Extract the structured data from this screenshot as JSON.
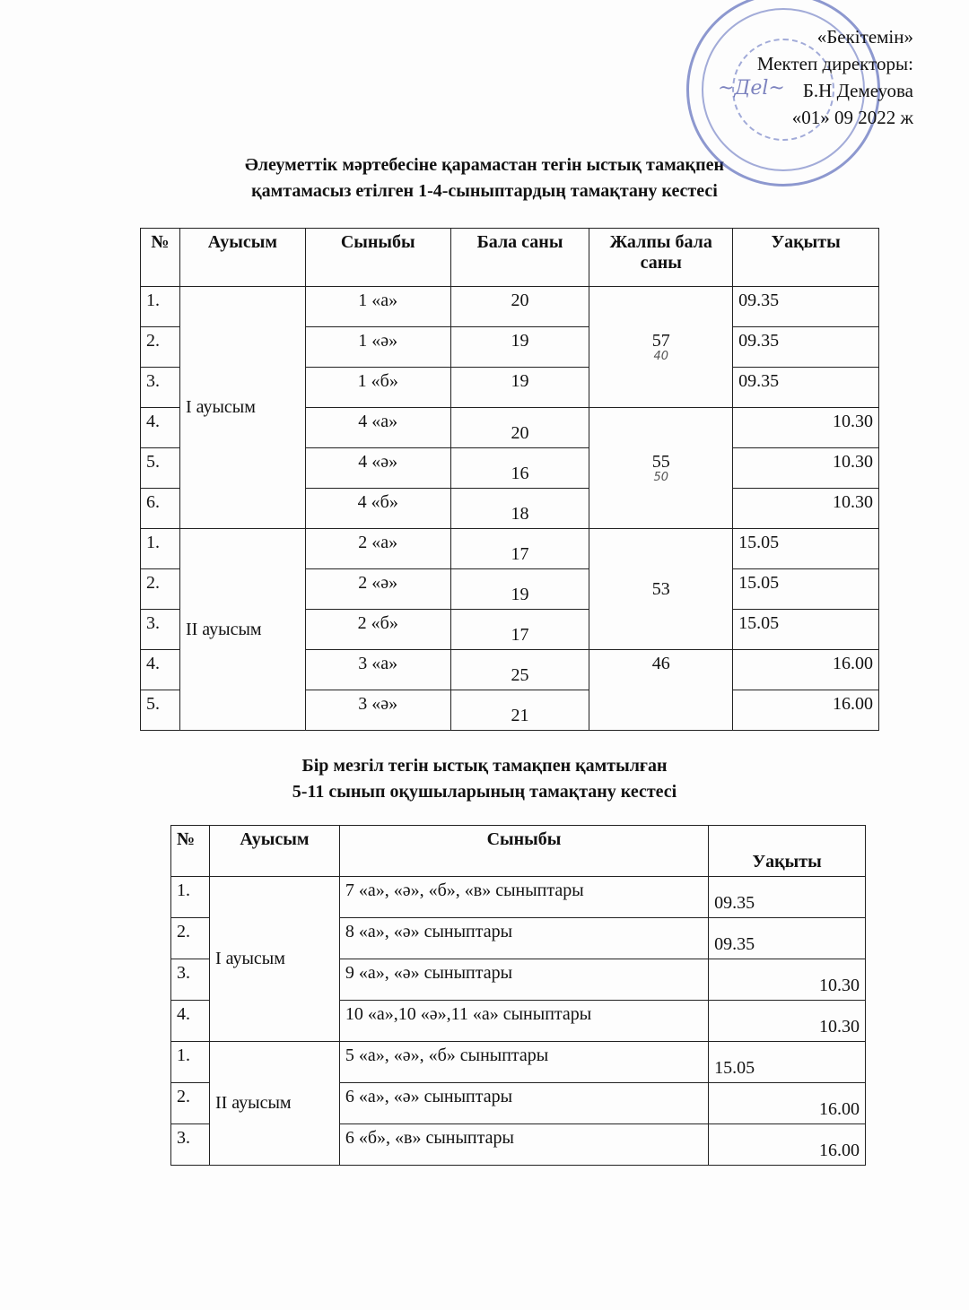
{
  "approval": {
    "line1": "«Бекітемін»",
    "line2": "Мектеп директоры:",
    "line3": "Б.Н Демеуова",
    "line4": "«01» 09 2022 ж"
  },
  "table1": {
    "title1": "Әлеуметтік мәртебесіне қарамастан тегін ыстық тамақпен",
    "title2": "қамтамасыз етілген 1-4-сыныптардың тамақтану кестесі",
    "headers": [
      "№",
      "Ауысым",
      "Сыныбы",
      "Бала саны",
      "Жалпы бала саны",
      "Уақыты"
    ],
    "shifts": [
      "І ауысым",
      "ІІ ауысым"
    ],
    "totals": [
      "57",
      "55",
      "53",
      "46"
    ],
    "handwritten": [
      "40",
      "50"
    ],
    "rows": [
      {
        "n": "1.",
        "cls": "1 «а»",
        "count": "20",
        "time": "09.35"
      },
      {
        "n": "2.",
        "cls": "1 «ә»",
        "count": "19",
        "time": "09.35"
      },
      {
        "n": "3.",
        "cls": "1 «б»",
        "count": "19",
        "time": "09.35"
      },
      {
        "n": "4.",
        "cls": "4 «а»",
        "count": "20",
        "time": "10.30"
      },
      {
        "n": "5.",
        "cls": "4 «ә»",
        "count": "16",
        "time": "10.30"
      },
      {
        "n": "6.",
        "cls": "4 «б»",
        "count": "18",
        "time": "10.30"
      },
      {
        "n": "1.",
        "cls": "2 «а»",
        "count": "17",
        "time": "15.05"
      },
      {
        "n": "2.",
        "cls": "2 «ә»",
        "count": "19",
        "time": "15.05"
      },
      {
        "n": "3.",
        "cls": "2 «б»",
        "count": "17",
        "time": "15.05"
      },
      {
        "n": "4.",
        "cls": "3 «а»",
        "count": "25",
        "time": "16.00"
      },
      {
        "n": "5.",
        "cls": "3 «ә»",
        "count": "21",
        "time": "16.00"
      }
    ]
  },
  "table2": {
    "title1": "Бір мезгіл тегін ыстық тамақпен қамтылған",
    "title2": "5-11 сынып оқушыларының тамақтану кестесі",
    "headers": [
      "№",
      "Ауысым",
      "Сыныбы",
      "Уақыты"
    ],
    "shifts": [
      "І ауысым",
      "ІІ ауысым"
    ],
    "rows": [
      {
        "n": "1.",
        "cls": "7 «а», «ә», «б», «в» сыныптары",
        "time": "09.35"
      },
      {
        "n": "2.",
        "cls": "8 «а», «ә» сыныптары",
        "time": "09.35"
      },
      {
        "n": "3.",
        "cls": "9 «а», «ә» сыныптары",
        "time": "10.30"
      },
      {
        "n": "4.",
        "cls": "10 «а»,10 «ә»,11 «а» сыныптары",
        "time": "10.30"
      },
      {
        "n": "1.",
        "cls": "5 «а», «ә», «б» сыныптары",
        "time": "15.05"
      },
      {
        "n": "2.",
        "cls": "6 «а», «ә» сыныптары",
        "time": "16.00"
      },
      {
        "n": "3.",
        "cls": "6 «б», «в» сыныптары",
        "time": "16.00"
      }
    ]
  }
}
